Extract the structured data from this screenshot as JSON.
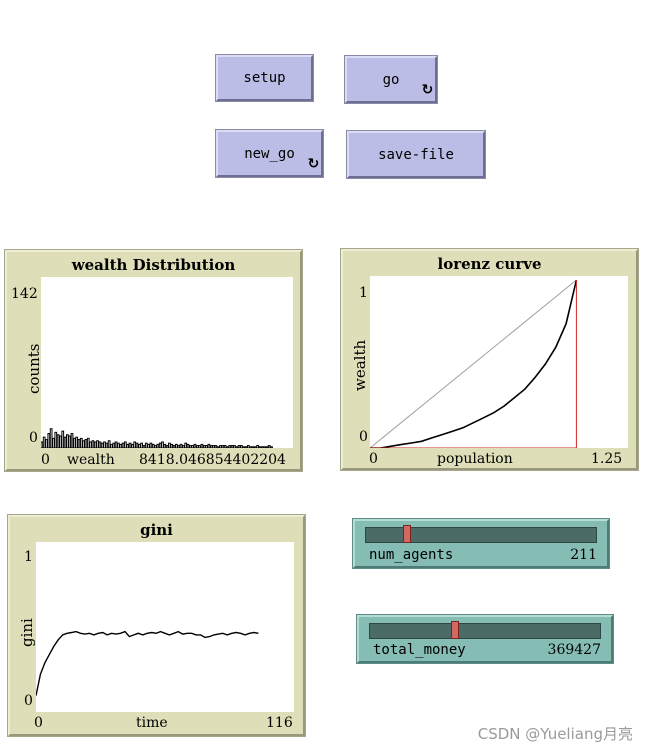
{
  "buttons": {
    "setup": "setup",
    "go": "go",
    "new_go": "new_go",
    "save_file": "save-file",
    "forever_glyph": "↻"
  },
  "plots": {
    "wealth": {
      "title": "wealth Distribution",
      "ylabel": "counts",
      "xlabel": "wealth",
      "y_max": "142",
      "y_min": "0",
      "x_min": "0",
      "x_max": "8418.046854402204"
    },
    "lorenz": {
      "title": "lorenz curve",
      "ylabel": "wealth",
      "xlabel": "population",
      "y_max": "1",
      "y_min": "0",
      "x_min": "0",
      "x_max": "1.25"
    },
    "gini": {
      "title": "gini",
      "ylabel": "gini",
      "xlabel": "time",
      "y_max": "1",
      "y_min": "0",
      "x_min": "0",
      "x_max": "116"
    }
  },
  "sliders": {
    "num_agents": {
      "name": "num_agents",
      "value": "211",
      "fraction": 0.18
    },
    "total_money": {
      "name": "total_money",
      "value": "369427",
      "fraction": 0.37
    }
  },
  "watermark": "CSDN @Yueliang月亮",
  "chart_data": [
    {
      "type": "bar",
      "title": "wealth Distribution",
      "xlabel": "wealth",
      "ylabel": "counts",
      "xlim": [
        0,
        8418.046854402204
      ],
      "ylim": [
        0,
        142
      ],
      "values": [
        5,
        9,
        7,
        12,
        16,
        8,
        13,
        11,
        10,
        14,
        9,
        11,
        10,
        12,
        8,
        9,
        7,
        8,
        6,
        7,
        8,
        5,
        6,
        5,
        6,
        5,
        4,
        5,
        4,
        6,
        3,
        4,
        5,
        4,
        3,
        4,
        5,
        3,
        4,
        3,
        5,
        4,
        3,
        4,
        2,
        4,
        3,
        4,
        3,
        2,
        3,
        4,
        5,
        3,
        2,
        4,
        3,
        2,
        3,
        2,
        3,
        2,
        4,
        3,
        2,
        2,
        3,
        2,
        2,
        3,
        2,
        2,
        3,
        2,
        2,
        2,
        1,
        2,
        2,
        2,
        1,
        2,
        2,
        2,
        1,
        2,
        2,
        1,
        1,
        2,
        1,
        1,
        1,
        2,
        1,
        1,
        1,
        1,
        2,
        1
      ]
    },
    {
      "type": "line",
      "title": "lorenz curve",
      "xlabel": "population",
      "ylabel": "wealth",
      "xlim": [
        0,
        1.25
      ],
      "ylim": [
        0,
        1
      ],
      "series": [
        {
          "name": "",
          "color": "#a0a0a0",
          "x": [
            0,
            1
          ],
          "y": [
            0,
            1
          ]
        },
        {
          "name": "",
          "color": "#000000",
          "x": [
            0,
            0.05,
            0.1,
            0.15,
            0.2,
            0.25,
            0.3,
            0.35,
            0.4,
            0.45,
            0.5,
            0.55,
            0.6,
            0.65,
            0.7,
            0.75,
            0.8,
            0.85,
            0.9,
            0.95,
            1.0
          ],
          "y": [
            0,
            0.0,
            0.01,
            0.02,
            0.03,
            0.04,
            0.06,
            0.08,
            0.1,
            0.12,
            0.15,
            0.18,
            0.21,
            0.25,
            0.3,
            0.35,
            0.42,
            0.5,
            0.6,
            0.74,
            1.0
          ]
        },
        {
          "name": "",
          "color": "#cc2a22",
          "x": [
            0,
            1,
            1
          ],
          "y": [
            0,
            0,
            1
          ]
        }
      ]
    },
    {
      "type": "line",
      "title": "gini",
      "xlabel": "time",
      "ylabel": "gini",
      "xlim": [
        0,
        116
      ],
      "ylim": [
        0,
        1
      ],
      "series": [
        {
          "name": "",
          "color": "#000000",
          "x": [
            0,
            2,
            4,
            6,
            8,
            10,
            12,
            14,
            16,
            18,
            20,
            22,
            24,
            26,
            28,
            30,
            32,
            34,
            36,
            38,
            40,
            42,
            44,
            46,
            48,
            50,
            52,
            54,
            56,
            58,
            60,
            62,
            64,
            66,
            68,
            70,
            72,
            74,
            76,
            78,
            80,
            82,
            84,
            86,
            88,
            90,
            92,
            94,
            96,
            98,
            100
          ],
          "y": [
            0.1,
            0.23,
            0.3,
            0.35,
            0.4,
            0.44,
            0.47,
            0.48,
            0.485,
            0.49,
            0.48,
            0.475,
            0.48,
            0.47,
            0.48,
            0.485,
            0.47,
            0.48,
            0.475,
            0.48,
            0.49,
            0.46,
            0.47,
            0.48,
            0.47,
            0.48,
            0.485,
            0.48,
            0.49,
            0.48,
            0.47,
            0.48,
            0.49,
            0.475,
            0.48,
            0.48,
            0.47,
            0.47,
            0.455,
            0.46,
            0.47,
            0.475,
            0.48,
            0.47,
            0.48,
            0.485,
            0.48,
            0.47,
            0.48,
            0.485,
            0.48
          ]
        }
      ]
    }
  ]
}
